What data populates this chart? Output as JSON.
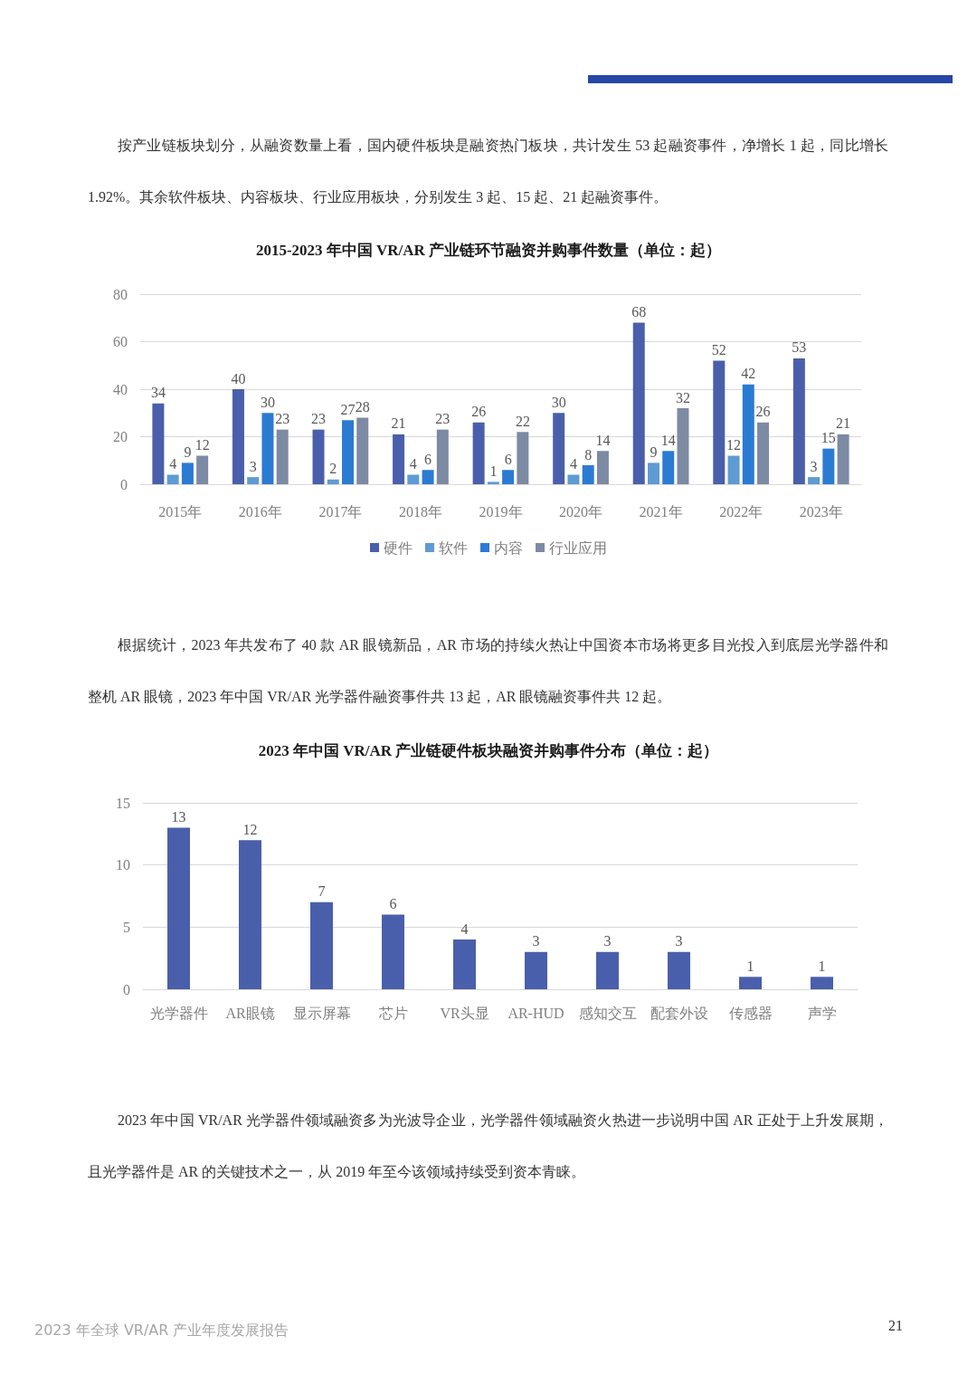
{
  "chart_data": [
    {
      "type": "bar",
      "title": "2015-2023 年中国 VR/AR 产业链环节融资并购事件数量（单位：起）",
      "categories": [
        "2015年",
        "2016年",
        "2017年",
        "2018年",
        "2019年",
        "2020年",
        "2021年",
        "2022年",
        "2023年"
      ],
      "series": [
        {
          "name": "硬件",
          "color": "#4a5fab",
          "values": [
            34,
            40,
            23,
            21,
            26,
            30,
            68,
            52,
            53
          ]
        },
        {
          "name": "软件",
          "color": "#5f9bd3",
          "values": [
            4,
            3,
            2,
            4,
            1,
            4,
            9,
            12,
            3
          ]
        },
        {
          "name": "内容",
          "color": "#2b7bd3",
          "values": [
            9,
            30,
            27,
            6,
            6,
            8,
            14,
            42,
            15
          ]
        },
        {
          "name": "行业应用",
          "color": "#7d8aa3",
          "values": [
            12,
            23,
            28,
            23,
            22,
            14,
            32,
            26,
            21
          ]
        }
      ],
      "ylim": [
        0,
        80
      ],
      "yticks": [
        0,
        20,
        40,
        60,
        80
      ],
      "grid": "y",
      "legend": "bottom",
      "data_labels": true,
      "annotations": [
        "按产业链板块划分，从融资数量上看，国内硬件板块是融资热门板块，共计发生 53 起融资事件，净增长 1 起，同比增长 1.92%。其余软件板块、内容板块、行业应用板块，分别发生 3 起、15 起、21 起融资事件。",
        "根据统计，2023 年共发布了 40 款 AR 眼镜新品，AR 市场的持续火热让中国资本市场将更多目光投入到底层光学器件和整机 AR 眼镜，2023 年中国 VR/AR 光学器件融资事件共 13 起，AR 眼镜融资事件共 12 起。"
      ]
    },
    {
      "type": "bar",
      "title": "2023 年中国 VR/AR 产业链硬件板块融资并购事件分布（单位：起）",
      "categories": [
        "光学器件",
        "AR眼镜",
        "显示屏幕",
        "芯片",
        "VR头显",
        "AR-HUD",
        "感知交互",
        "配套外设",
        "传感器",
        "声学"
      ],
      "values": [
        13,
        12,
        7,
        6,
        4,
        3,
        3,
        3,
        1,
        1
      ],
      "color": "#4a5fab",
      "ylim": [
        0,
        15
      ],
      "yticks": [
        0,
        5,
        10,
        15
      ],
      "grid": "y",
      "data_labels": true,
      "annotations": [
        "2023 年中国 VR/AR 光学器件领域融资多为光波导企业，光学器件领域融资火热进一步说明中国 AR 正处于上升发展期，且光学器件是 AR 的关键技术之一，从 2019 年至今该领域持续受到资本青睐。",
        "2023 年全球 VR/AR 产业年度发展报告",
        "21"
      ]
    }
  ]
}
